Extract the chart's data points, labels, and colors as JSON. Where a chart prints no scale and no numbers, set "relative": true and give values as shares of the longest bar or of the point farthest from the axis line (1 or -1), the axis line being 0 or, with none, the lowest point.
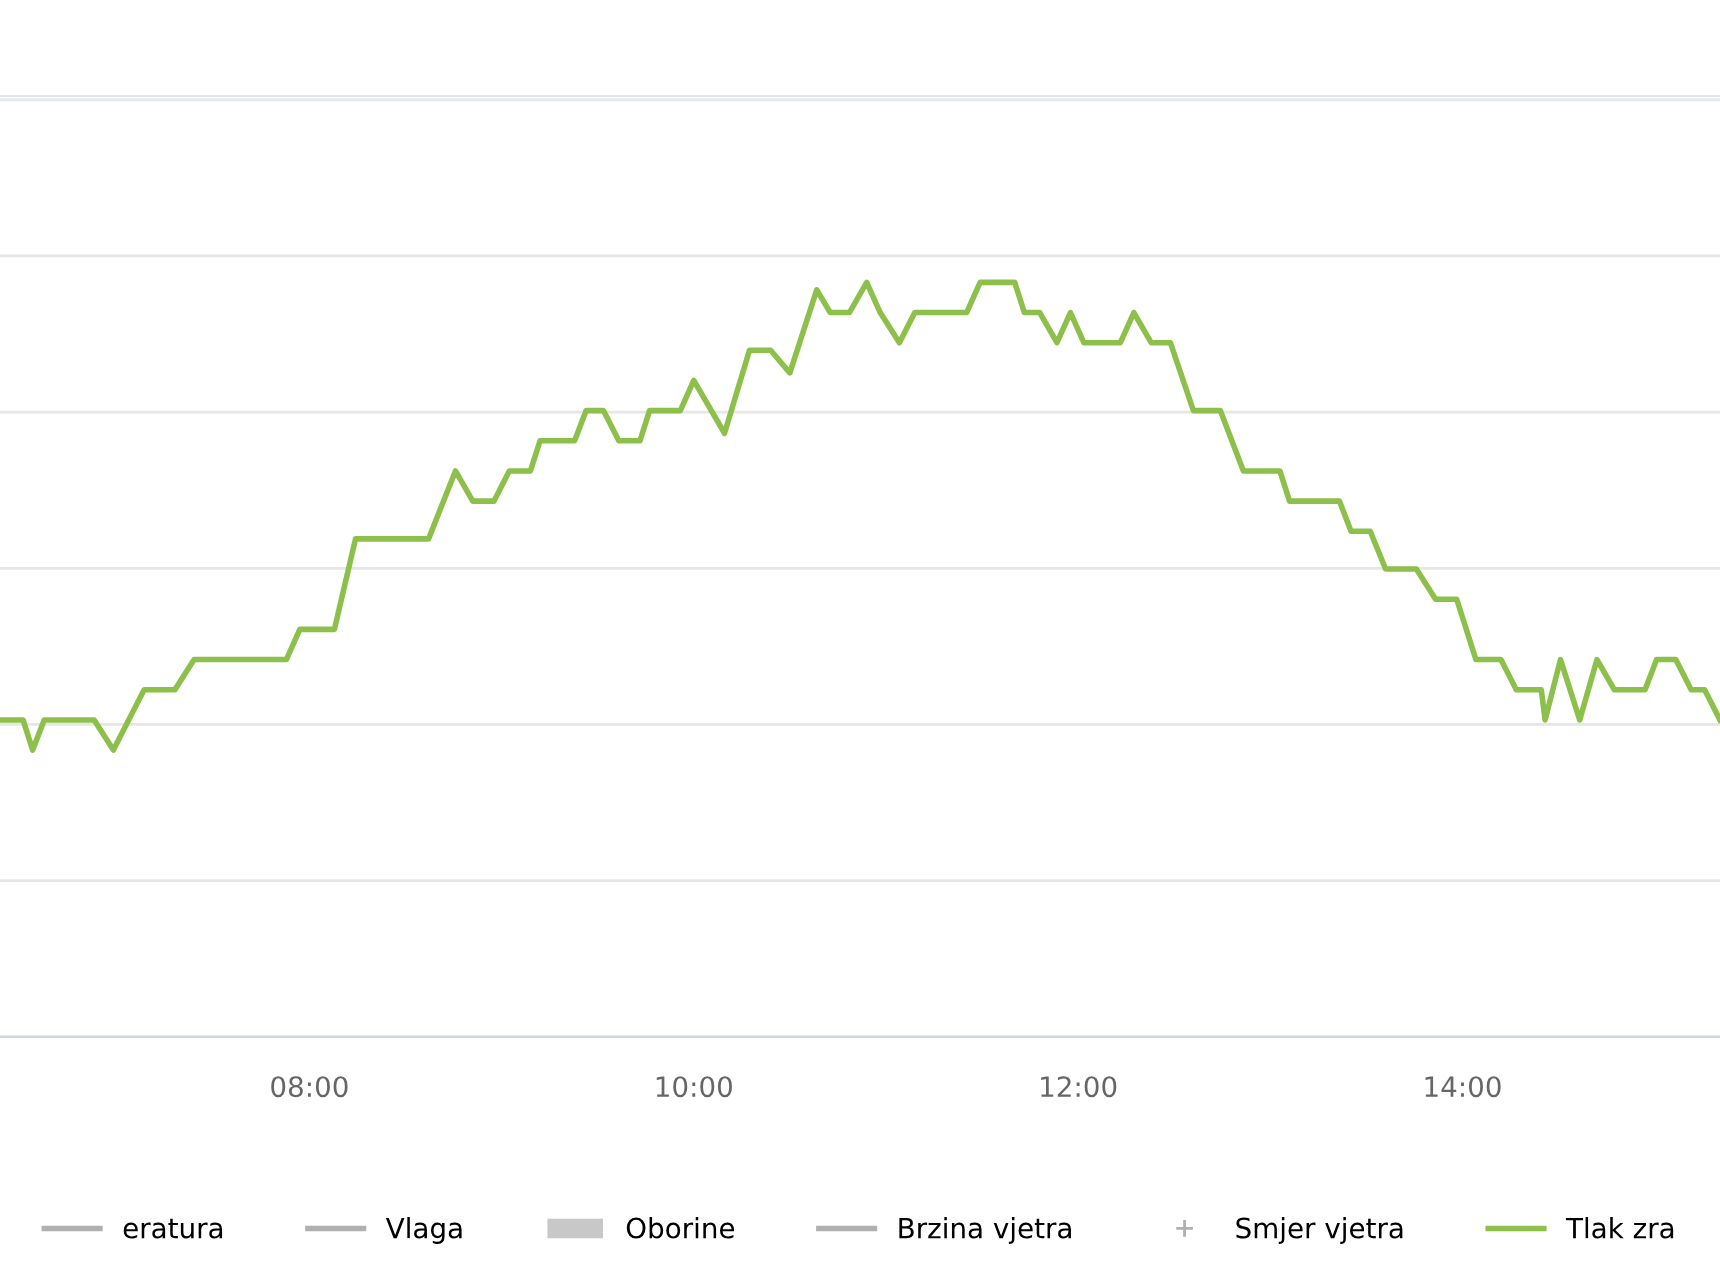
{
  "chart_data": {
    "type": "line",
    "relative": true,
    "grid": "y",
    "legend": "bottom",
    "marker": "none",
    "line_style": "solid",
    "xlim": [
      6.39,
      15.34
    ],
    "xticks": [
      {
        "value": 8,
        "label": "08:00"
      },
      {
        "value": 10,
        "label": "10:00"
      },
      {
        "value": 12,
        "label": "12:00"
      },
      {
        "value": 14,
        "label": "14:00"
      }
    ],
    "series": [
      {
        "name": "eratura",
        "type": "line",
        "color": "#b0b0b0"
      },
      {
        "name": "Vlaga",
        "type": "line",
        "color": "#b0b0b0"
      },
      {
        "name": "Oborine",
        "type": "bar",
        "color": "#c8c8c8"
      },
      {
        "name": "Brzina vjetra",
        "type": "line",
        "color": "#b0b0b0"
      },
      {
        "name": "Smjer vjetra",
        "type": "scatter",
        "marker": "cross",
        "color": "#b0b0b0"
      },
      {
        "name": "Tlak zra",
        "color": "#8cc04a",
        "x": [
          6.39,
          6.51,
          6.56,
          6.62,
          6.88,
          6.98,
          7.14,
          7.3,
          7.4,
          7.88,
          7.95,
          8.13,
          8.24,
          8.62,
          8.76,
          8.85,
          8.96,
          9.04,
          9.15,
          9.2,
          9.38,
          9.44,
          9.53,
          9.61,
          9.72,
          9.77,
          9.93,
          10.0,
          10.16,
          10.29,
          10.4,
          10.5,
          10.64,
          10.71,
          10.81,
          10.9,
          10.97,
          11.07,
          11.15,
          11.42,
          11.49,
          11.67,
          11.72,
          11.8,
          11.89,
          11.96,
          12.03,
          12.22,
          12.29,
          12.38,
          12.48,
          12.6,
          12.74,
          12.86,
          13.05,
          13.1,
          13.36,
          13.42,
          13.52,
          13.6,
          13.76,
          13.86,
          13.97,
          14.07,
          14.2,
          14.28,
          14.41,
          14.43,
          14.51,
          14.61,
          14.7,
          14.79,
          14.95,
          15.01,
          15.11,
          15.19,
          15.26,
          15.34
        ],
        "values": [
          0.42,
          0.42,
          0.38,
          0.42,
          0.42,
          0.38,
          0.46,
          0.46,
          0.5,
          0.5,
          0.54,
          0.54,
          0.66,
          0.66,
          0.75,
          0.71,
          0.71,
          0.75,
          0.75,
          0.79,
          0.79,
          0.83,
          0.83,
          0.79,
          0.79,
          0.83,
          0.83,
          0.87,
          0.8,
          0.91,
          0.91,
          0.88,
          0.99,
          0.96,
          0.96,
          1,
          0.96,
          0.92,
          0.96,
          0.96,
          1,
          1,
          0.96,
          0.96,
          0.92,
          0.96,
          0.92,
          0.92,
          0.96,
          0.92,
          0.92,
          0.83,
          0.83,
          0.75,
          0.75,
          0.71,
          0.71,
          0.67,
          0.67,
          0.62,
          0.62,
          0.58,
          0.58,
          0.5,
          0.5,
          0.46,
          0.46,
          0.42,
          0.5,
          0.42,
          0.5,
          0.46,
          0.46,
          0.5,
          0.5,
          0.46,
          0.46,
          0.42
        ]
      }
    ]
  }
}
